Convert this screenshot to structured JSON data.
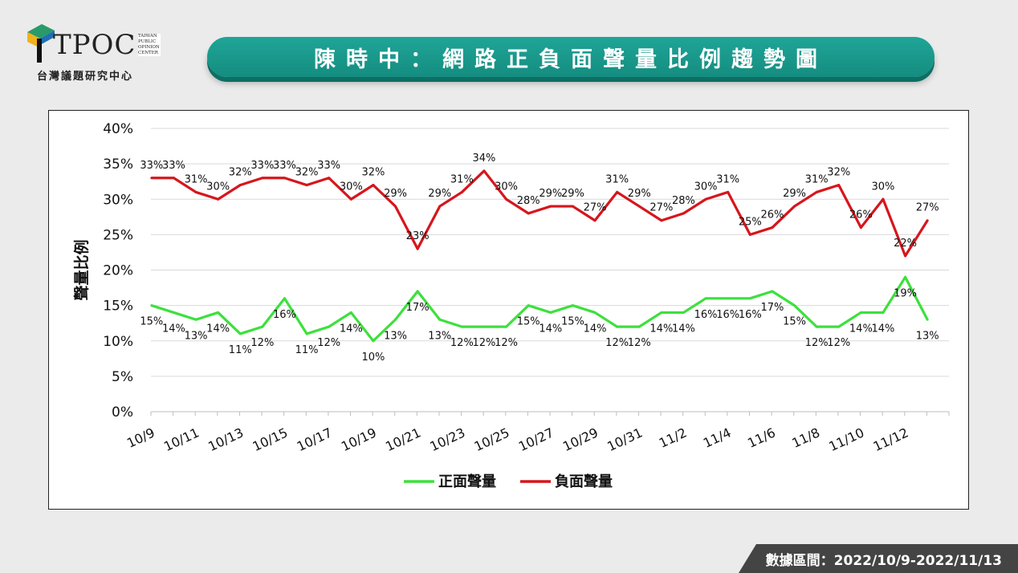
{
  "logo": {
    "name": "TPOC",
    "subtitle": "台灣議題研究中心",
    "small_text": "TAIWAN PUBLIC OPINION CENTER"
  },
  "title": "陳時中：網路正負面聲量比例趨勢圖",
  "footer": "數據區間：2022/10/9-2022/11/13",
  "colors": {
    "positive": "#3de03d",
    "negative": "#d6161c",
    "banner": "#1a9a8c"
  },
  "chart_data": {
    "type": "line",
    "title": "",
    "ylabel": "聲量比例",
    "xlabel": "",
    "ylim": [
      0,
      40
    ],
    "yticks": [
      "0%",
      "5%",
      "10%",
      "15%",
      "20%",
      "25%",
      "30%",
      "35%",
      "40%"
    ],
    "xtick_labels": [
      "10/9",
      "10/11",
      "10/13",
      "10/15",
      "10/17",
      "10/19",
      "10/21",
      "10/23",
      "10/25",
      "10/27",
      "10/29",
      "10/31",
      "11/2",
      "11/4",
      "11/6",
      "11/8",
      "11/10",
      "11/12"
    ],
    "x": [
      "10/9",
      "10/10",
      "10/11",
      "10/12",
      "10/13",
      "10/14",
      "10/15",
      "10/16",
      "10/17",
      "10/18",
      "10/19",
      "10/20",
      "10/21",
      "10/22",
      "10/23",
      "10/24",
      "10/25",
      "10/26",
      "10/27",
      "10/28",
      "10/29",
      "10/30",
      "10/31",
      "11/1",
      "11/2",
      "11/3",
      "11/4",
      "11/5",
      "11/6",
      "11/7",
      "11/8",
      "11/9",
      "11/10",
      "11/11",
      "11/12",
      "11/13"
    ],
    "series": [
      {
        "name": "正面聲量",
        "color": "#3de03d",
        "values": [
          15,
          14,
          13,
          14,
          11,
          12,
          16,
          11,
          12,
          14,
          10,
          13,
          17,
          13,
          12,
          12,
          12,
          15,
          14,
          15,
          14,
          12,
          12,
          14,
          14,
          16,
          16,
          16,
          17,
          15,
          12,
          12,
          14,
          14,
          19,
          13
        ]
      },
      {
        "name": "負面聲量",
        "color": "#d6161c",
        "values": [
          33,
          33,
          31,
          30,
          32,
          33,
          33,
          32,
          33,
          30,
          32,
          29,
          23,
          29,
          31,
          34,
          30,
          28,
          29,
          29,
          27,
          31,
          29,
          27,
          28,
          30,
          31,
          25,
          26,
          29,
          31,
          32,
          26,
          30,
          22,
          27
        ]
      }
    ],
    "grid": true,
    "legend": "bottom"
  }
}
